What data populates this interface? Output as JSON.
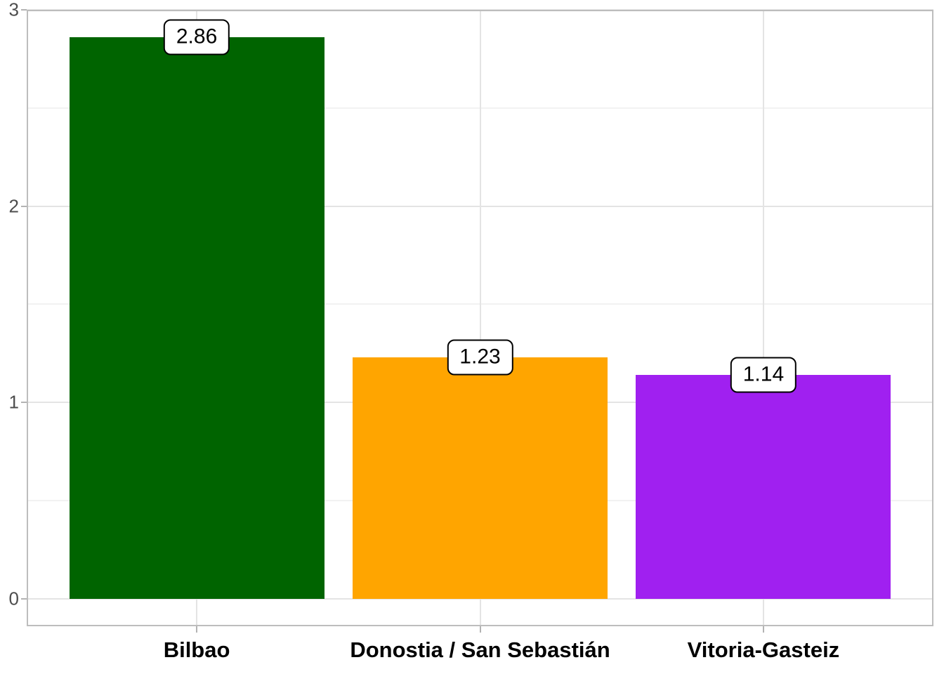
{
  "chart_data": {
    "type": "bar",
    "title": "",
    "xlabel": "",
    "ylabel": "",
    "categories": [
      "Bilbao",
      "Donostia / San Sebastián",
      "Vitoria-Gasteiz"
    ],
    "values": [
      2.86,
      1.23,
      1.14
    ],
    "value_labels": [
      "2.86",
      "1.23",
      "1.14"
    ],
    "bar_colors": [
      "#006400",
      "#FFA500",
      "#A020F0"
    ],
    "ylim": [
      0,
      3
    ],
    "y_major_ticks": [
      0,
      1,
      2,
      3
    ],
    "y_major_tick_labels": [
      "0",
      "1",
      "2",
      "3"
    ],
    "y_minor_ticks": [
      0.5,
      1.5,
      2.5
    ],
    "grid": "on",
    "legend": "none",
    "bar_width_fraction": 0.9,
    "style": {
      "background": "#ffffff",
      "panel_border_color": "#bdbdbd",
      "major_grid_color": "#e4e4e4",
      "minor_grid_color": "#f2f2f2",
      "tick_color": "#b3b3b3",
      "axis_text_color": "#4d4d4d",
      "category_text_color": "#000000",
      "value_label_bg": "#ffffff",
      "value_label_border": "#000000"
    }
  }
}
